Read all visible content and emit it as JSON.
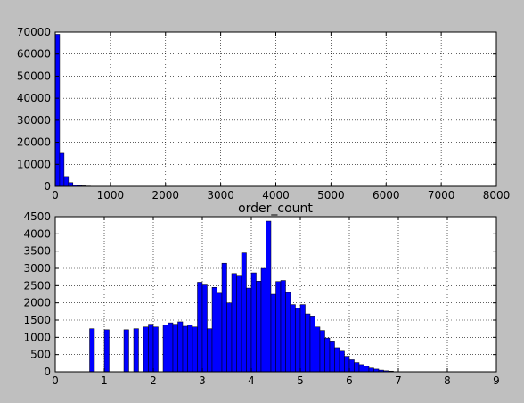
{
  "figure": {
    "background": "#bfbfbf",
    "bar_color": "#0000ff",
    "edge_color": "#000000"
  },
  "chart_data": [
    {
      "type": "bar",
      "title": "",
      "xlabel": "",
      "ylabel": "",
      "xlim": [
        0,
        8000
      ],
      "ylim": [
        0,
        70000
      ],
      "xticks": [
        0,
        1000,
        2000,
        3000,
        4000,
        5000,
        6000,
        7000,
        8000
      ],
      "yticks": [
        0,
        10000,
        20000,
        30000,
        40000,
        50000,
        60000,
        70000
      ],
      "grid": true,
      "bin_width": 80,
      "series": [
        {
          "bin_starts": [
            0,
            80,
            160,
            240,
            320,
            400,
            480,
            560,
            640,
            720
          ],
          "values": [
            69000,
            15000,
            4500,
            1700,
            700,
            400,
            250,
            150,
            100,
            60
          ]
        }
      ]
    },
    {
      "type": "bar",
      "title": "order_count",
      "xlabel": "",
      "ylabel": "",
      "xlim": [
        0,
        9
      ],
      "ylim": [
        0,
        4500
      ],
      "xticks": [
        0,
        1,
        2,
        3,
        4,
        5,
        6,
        7,
        8,
        9
      ],
      "yticks": [
        0,
        500,
        1000,
        1500,
        2000,
        2500,
        3000,
        3500,
        4000,
        4500
      ],
      "grid": true,
      "bin_width": 0.1,
      "series": [
        {
          "bin_starts": [
            0.7,
            1.0,
            1.4,
            1.6,
            1.8,
            1.9,
            2.0,
            2.2,
            2.3,
            2.4,
            2.5,
            2.6,
            2.7,
            2.8,
            2.9,
            3.0,
            3.1,
            3.2,
            3.3,
            3.4,
            3.5,
            3.6,
            3.7,
            3.8,
            3.9,
            4.0,
            4.1,
            4.2,
            4.3,
            4.4,
            4.5,
            4.6,
            4.7,
            4.8,
            4.9,
            5.0,
            5.1,
            5.2,
            5.3,
            5.4,
            5.5,
            5.6,
            5.7,
            5.8,
            5.9,
            6.0,
            6.1,
            6.2,
            6.3,
            6.4,
            6.5,
            6.6,
            6.7,
            6.8
          ],
          "values": [
            1250,
            1220,
            1220,
            1250,
            1300,
            1380,
            1300,
            1350,
            1420,
            1380,
            1450,
            1320,
            1350,
            1300,
            2600,
            2520,
            1250,
            2450,
            2280,
            3150,
            2000,
            2850,
            2800,
            3450,
            2430,
            2870,
            2630,
            3000,
            4370,
            2250,
            2620,
            2650,
            2300,
            1950,
            1850,
            1950,
            1680,
            1620,
            1300,
            1200,
            980,
            870,
            700,
            600,
            450,
            350,
            270,
            210,
            160,
            110,
            80,
            50,
            30,
            20
          ]
        }
      ]
    }
  ]
}
